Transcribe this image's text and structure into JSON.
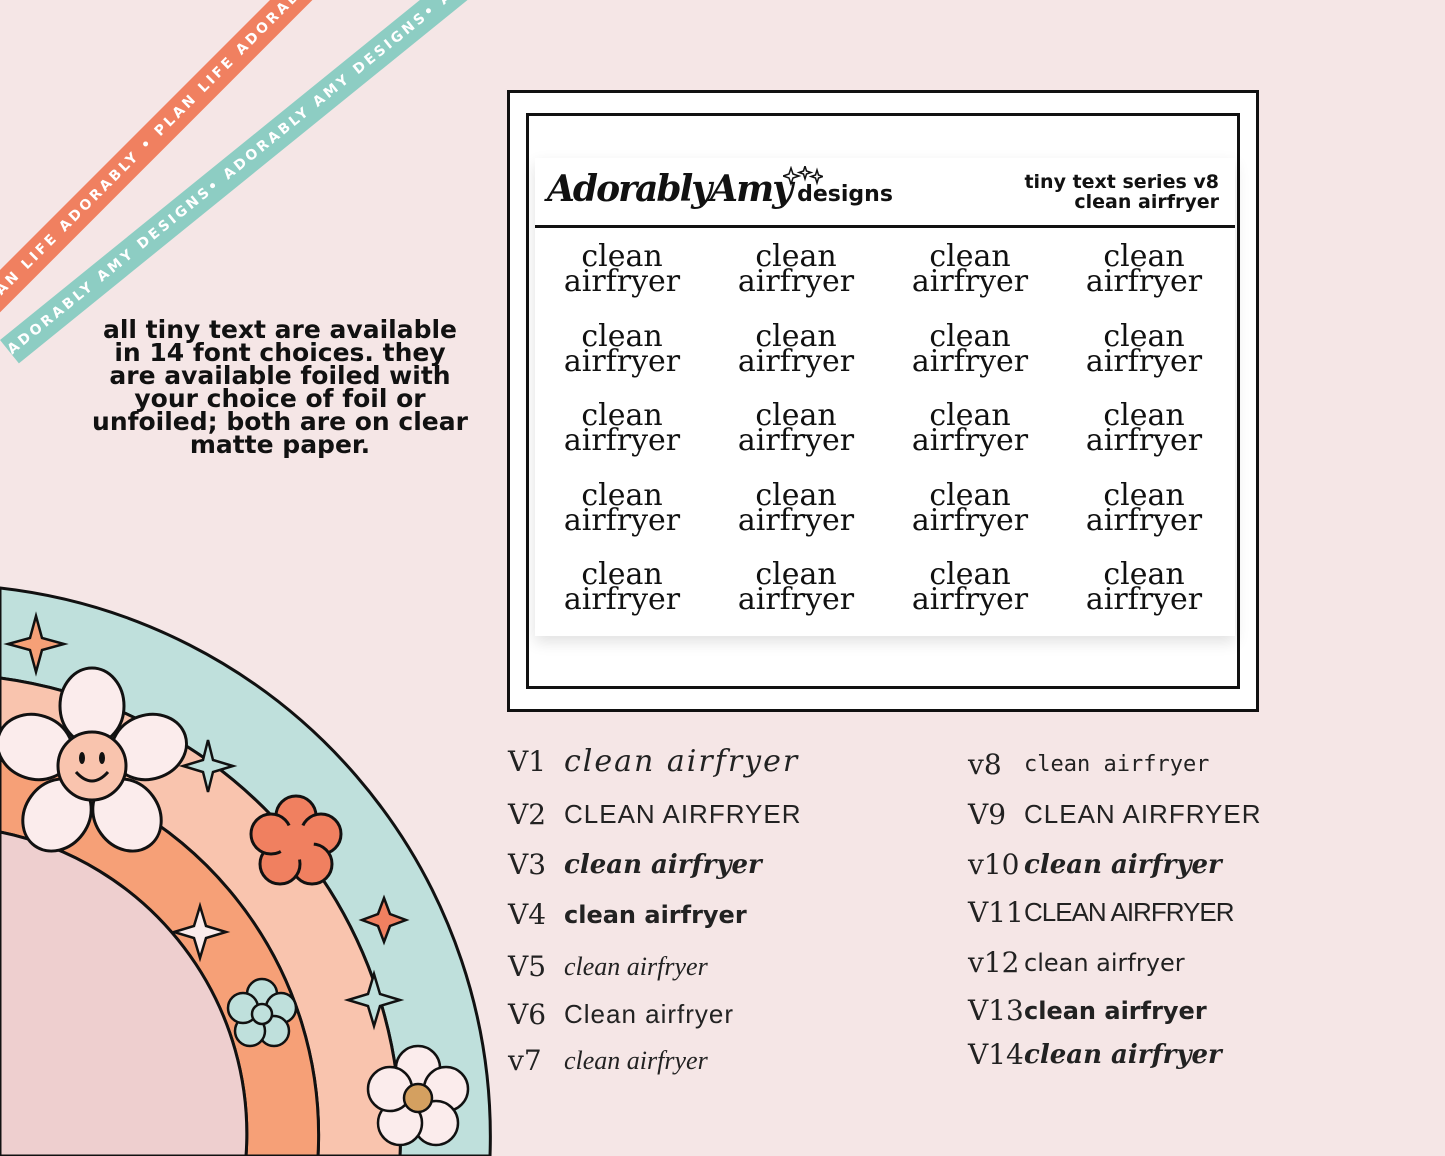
{
  "ribbons": {
    "orange": "PLAN LIFE ADORABLY • PLAN LIFE ADORABLY • PLAN LIFE ADORABLY • PLAN LIFE ADORABLY",
    "mint": "ADORABLY AMY DESIGNS• ADORABLY AMY DESIGNS• ADORABLY AMY DESIGNS• ADORABLY AMY DESIGNS•"
  },
  "description": "all tiny text are available in 14 font choices. they are available foiled with your choice of foil or unfoiled; both are on clear matte paper.",
  "sheet": {
    "brand_script": "AdorablyAmy",
    "brand_designs": "designs",
    "series_line1": "tiny text series v8",
    "series_line2": "clean airfryer",
    "sticker_line1": "clean",
    "sticker_line2": "airfryer"
  },
  "fonts_left": [
    {
      "version": "V1",
      "sample": "clean airfryer"
    },
    {
      "version": "V2",
      "sample": "CLEAN AIRFRYER"
    },
    {
      "version": "V3",
      "sample": "clean airfryer"
    },
    {
      "version": "V4",
      "sample": "clean airfryer"
    },
    {
      "version": "V5",
      "sample": "clean airfryer"
    },
    {
      "version": "V6",
      "sample": "Clean airfryer"
    },
    {
      "version": "v7",
      "sample": "clean airfryer"
    }
  ],
  "fonts_right": [
    {
      "version": "v8",
      "sample": "clean airfryer"
    },
    {
      "version": "V9",
      "sample": "clean airfryer"
    },
    {
      "version": "v10",
      "sample": "clean airfryer"
    },
    {
      "version": "V11",
      "sample": "CLEAN AIRFRYER"
    },
    {
      "version": "v12",
      "sample": "clean airfryer"
    },
    {
      "version": "V13",
      "sample": "clean airfryer"
    },
    {
      "version": "V14",
      "sample": "clean airfryer"
    }
  ],
  "colors": {
    "background": "#f5e6e6",
    "ribbon_orange": "#f08060",
    "ribbon_mint": "#8dcdc3",
    "rainbow_mint": "#bfe0dc",
    "rainbow_peach": "#f9c4ae",
    "rainbow_orange": "#f6a077",
    "rainbow_pink": "#eecfcf"
  }
}
